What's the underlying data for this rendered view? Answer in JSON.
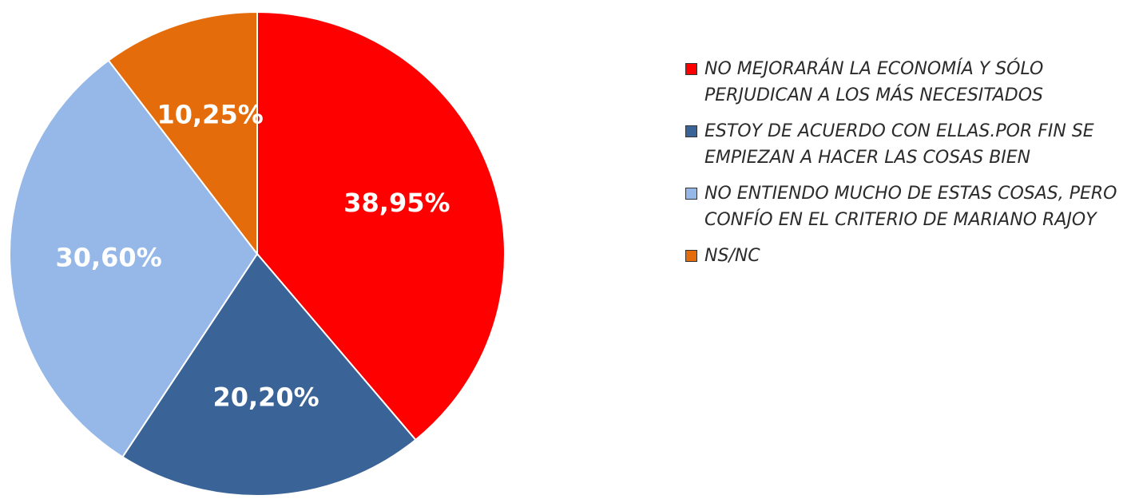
{
  "chart_data": {
    "type": "pie",
    "categories": [
      "NO MEJORARÁN LA ECONOMÍA Y SÓLO PERJUDICAN A LOS MÁS NECESITADOS",
      "ESTOY DE ACUERDO CON ELLAS.POR FIN SE EMPIEZAN A HACER LAS COSAS BIEN",
      "NO ENTIENDO MUCHO DE ESTAS COSAS, PERO CONFÍO EN EL CRITERIO DE MARIANO RAJOY",
      "NS/NC"
    ],
    "values": [
      38.95,
      20.2,
      30.6,
      10.25
    ],
    "value_labels": [
      "38,95%",
      "20,20%",
      "30,60%",
      "10,25%"
    ],
    "colors": [
      "#ff0000",
      "#3a6397",
      "#95b8e8",
      "#e46c0a"
    ],
    "legend": "right"
  }
}
